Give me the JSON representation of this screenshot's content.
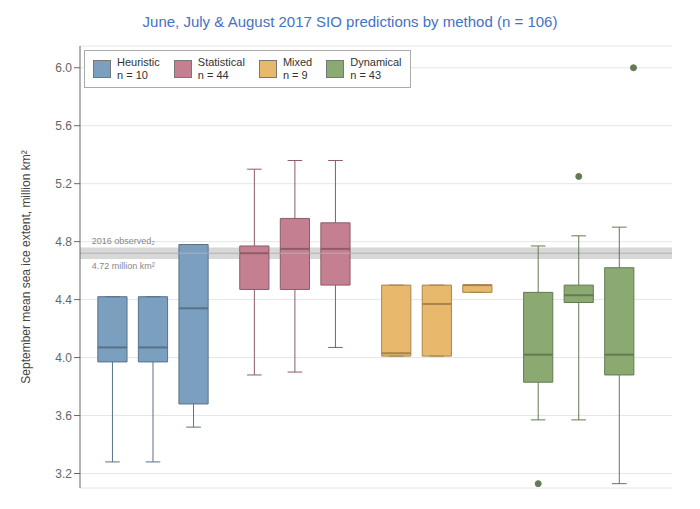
{
  "chart_data": {
    "type": "box",
    "title": "June, July & August 2017 SIO predictions by method (n = 106)",
    "y_label": "September mean sea ice extent, million km²",
    "ylim": [
      3.1,
      6.15
    ],
    "yticks": [
      3.2,
      3.6,
      {
        "value": 4.0,
        "label": "4.0"
      },
      4.4,
      4.8,
      5.2,
      5.6,
      {
        "value": 6.0,
        "label": "6.0"
      }
    ],
    "grid": true,
    "legend": "upper left",
    "reference_line": 4.72,
    "reference_band": [
      4.68,
      4.76
    ],
    "annotations": [
      "2016 observed₂",
      "4.72 million km²"
    ],
    "series": [
      {
        "name": "Heuristic\nn = 10",
        "color": "#7b9fbe",
        "boxes": [
          {
            "med": 4.07,
            "q1": 3.97,
            "q3": 4.42,
            "whislo": 3.28,
            "whishi": 4.42,
            "fliers": []
          },
          {
            "med": 4.07,
            "q1": 3.97,
            "q3": 4.42,
            "whislo": 3.28,
            "whishi": 4.42,
            "fliers": []
          },
          {
            "med": 4.34,
            "q1": 3.68,
            "q3": 4.78,
            "whislo": 3.52,
            "whishi": 4.78,
            "fliers": []
          }
        ]
      },
      {
        "name": "Statistical\nn = 44",
        "color": "#c48090",
        "boxes": [
          {
            "med": 4.72,
            "q1": 4.47,
            "q3": 4.77,
            "whislo": 3.88,
            "whishi": 5.3,
            "fliers": []
          },
          {
            "med": 4.75,
            "q1": 4.47,
            "q3": 4.96,
            "whislo": 3.9,
            "whishi": 5.36,
            "fliers": []
          },
          {
            "med": 4.75,
            "q1": 4.5,
            "q3": 4.93,
            "whislo": 4.07,
            "whishi": 5.36,
            "fliers": []
          }
        ]
      },
      {
        "name": "Mixed\nn = 9",
        "color": "#e8b86d",
        "boxes": [
          {
            "med": 4.03,
            "q1": 4.01,
            "q3": 4.5,
            "whislo": 4.01,
            "whishi": 4.5,
            "fliers": []
          },
          {
            "med": 4.37,
            "q1": 4.01,
            "q3": 4.5,
            "whislo": 4.01,
            "whishi": 4.5,
            "fliers": []
          },
          {
            "med": 4.5,
            "q1": 4.45,
            "q3": 4.5,
            "whislo": 4.45,
            "whishi": 4.5,
            "fliers": []
          }
        ]
      },
      {
        "name": "Dynamical\nn = 43",
        "color": "#8aaa72",
        "boxes": [
          {
            "med": 4.02,
            "q1": 3.83,
            "q3": 4.45,
            "whislo": 3.57,
            "whishi": 4.77,
            "fliers": [
              3.13
            ]
          },
          {
            "med": 4.43,
            "q1": 4.38,
            "q3": 4.5,
            "whislo": 3.57,
            "whishi": 4.84,
            "fliers": [
              5.25
            ]
          },
          {
            "med": 4.02,
            "q1": 3.88,
            "q3": 4.62,
            "whislo": 3.13,
            "whishi": 4.9,
            "fliers": []
          }
        ],
        "extra_points": [
          6.0
        ]
      }
    ]
  }
}
